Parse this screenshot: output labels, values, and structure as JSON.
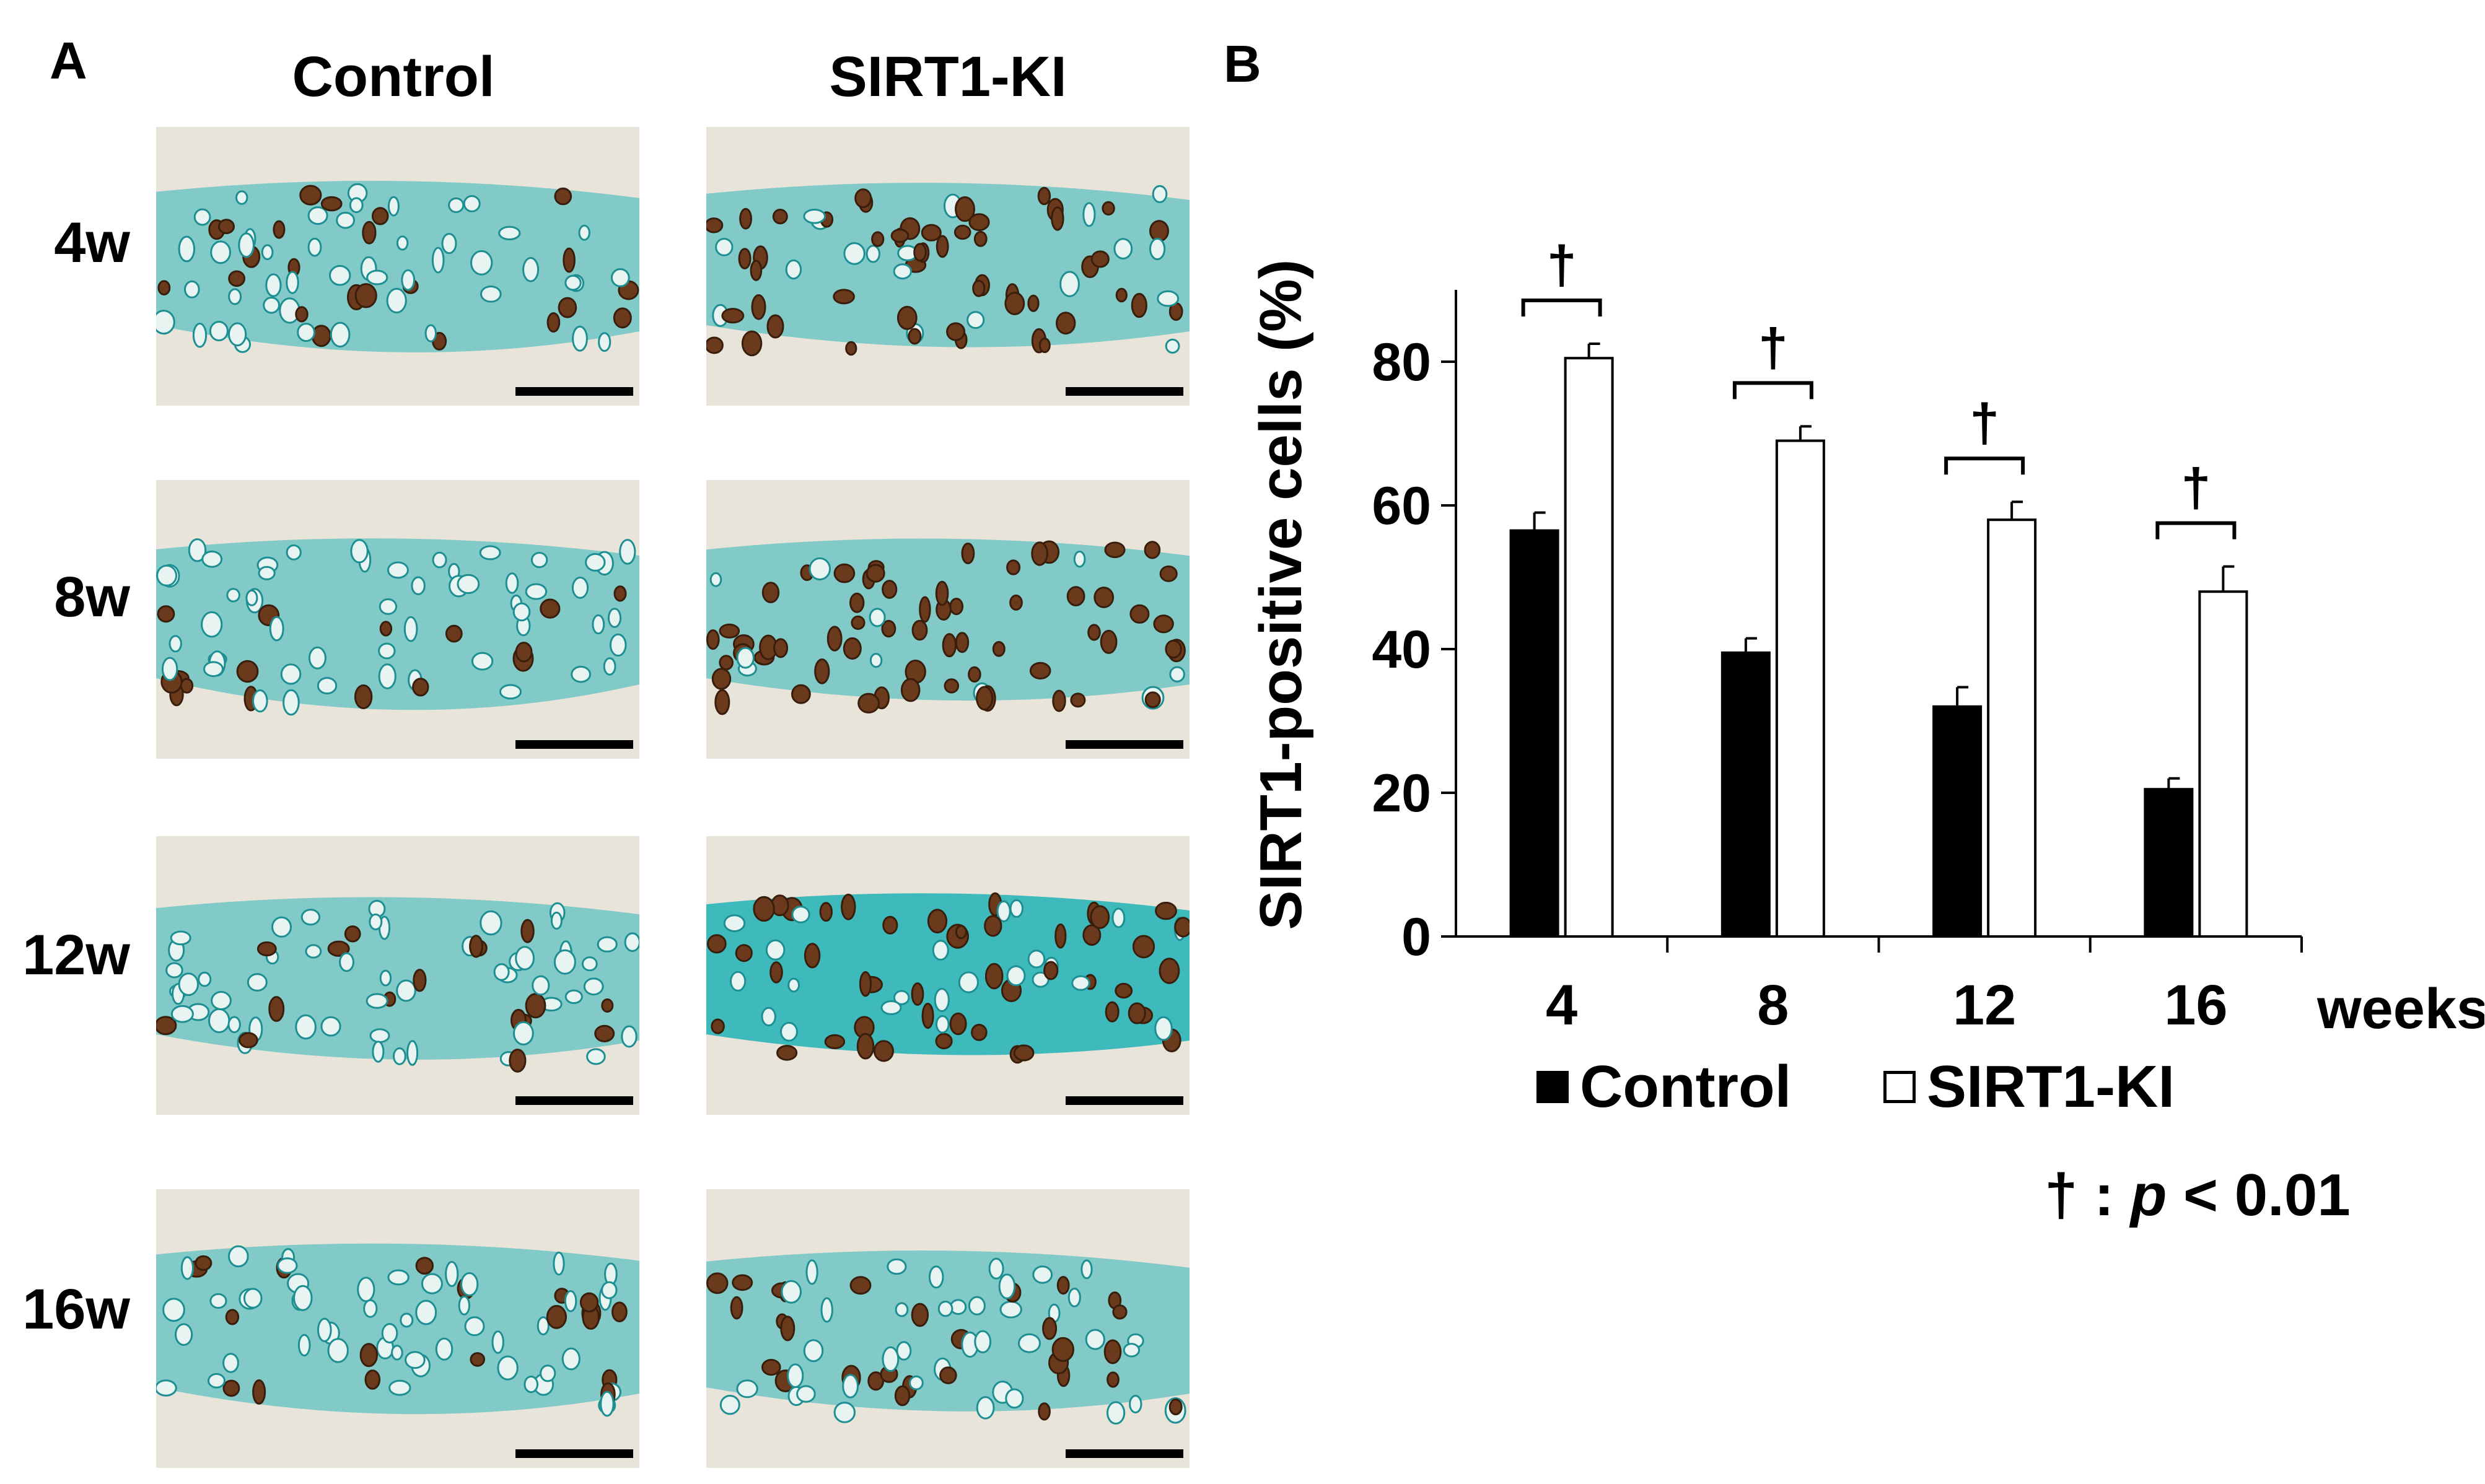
{
  "panel_a": {
    "label": "A",
    "col_headers": [
      "Control",
      "SIRT1-KI"
    ],
    "row_labels": [
      "4w",
      "8w",
      "12w",
      "16w"
    ]
  },
  "panel_b": {
    "label": "B",
    "legend": {
      "control": "Control",
      "sirt1": "SIRT1-KI"
    },
    "significance_note": {
      "symbol": "†",
      "sep": " : ",
      "p": "p",
      "rest": " < 0.01"
    }
  },
  "colors": {
    "control_bar": "#000000",
    "sirt1_bar": "#ffffff",
    "stain_blue": "#2bb5b8",
    "stain_brown": "#6b3a1c",
    "tissue_bg": "#e9e4da"
  },
  "chart_data": {
    "type": "bar",
    "categories": [
      "4",
      "8",
      "12",
      "16"
    ],
    "x_unit_label": "weeks",
    "ylabel": "SIRT1-positive cells (%)",
    "ylim": [
      0,
      90
    ],
    "yticks": [
      0,
      20,
      40,
      60,
      80
    ],
    "series": [
      {
        "name": "Control",
        "values": [
          56.5,
          39.5,
          32,
          20.5
        ],
        "errors": [
          2.5,
          2,
          2.7,
          1.5
        ],
        "fill": "#000000"
      },
      {
        "name": "SIRT1-KI",
        "values": [
          80.5,
          69,
          58,
          48
        ],
        "errors": [
          2,
          2,
          2.5,
          3.5
        ],
        "fill": "#ffffff"
      }
    ],
    "annotations": [
      "†",
      "†",
      "†",
      "†"
    ],
    "grid": false
  }
}
